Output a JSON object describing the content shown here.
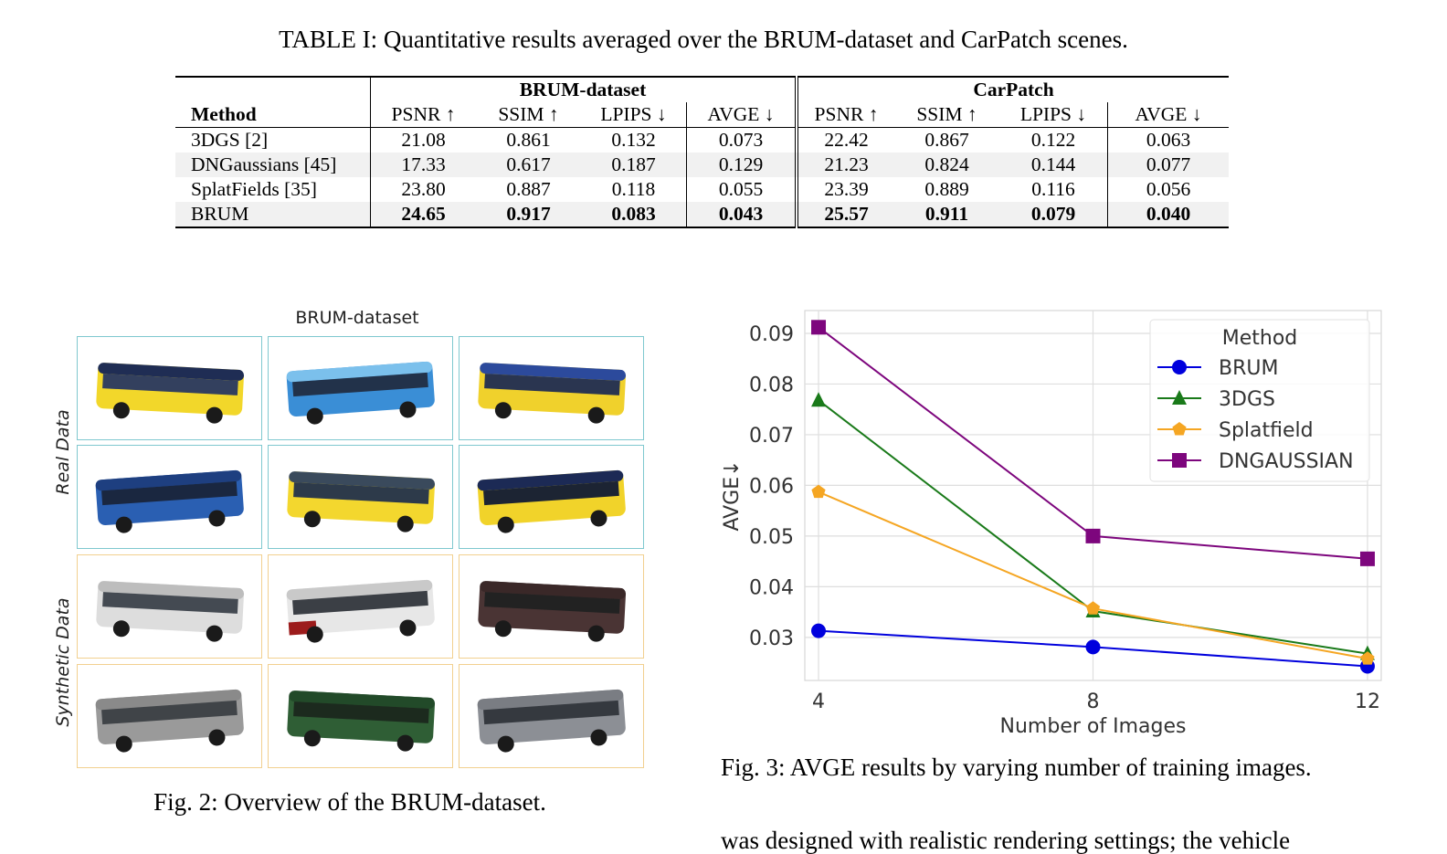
{
  "table": {
    "caption": "TABLE I: Quantitative results averaged over the BRUM-dataset and CarPatch scenes.",
    "group_headers": [
      "BRUM-dataset",
      "CarPatch"
    ],
    "method_header": "Method",
    "metric_headers": [
      "PSNR ↑",
      "SSIM ↑",
      "LPIPS ↓",
      "AVGE ↓",
      "PSNR ↑",
      "SSIM ↑",
      "LPIPS ↓",
      "AVGE ↓"
    ],
    "rows": [
      {
        "method": "3DGS [2]",
        "values": [
          "21.08",
          "0.861",
          "0.132",
          "0.073",
          "22.42",
          "0.867",
          "0.122",
          "0.063"
        ]
      },
      {
        "method": "DNGaussians [45]",
        "values": [
          "17.33",
          "0.617",
          "0.187",
          "0.129",
          "21.23",
          "0.824",
          "0.144",
          "0.077"
        ]
      },
      {
        "method": "SplatFields [35]",
        "values": [
          "23.80",
          "0.887",
          "0.118",
          "0.055",
          "23.39",
          "0.889",
          "0.116",
          "0.056"
        ]
      },
      {
        "method": "BRUM",
        "values": [
          "24.65",
          "0.917",
          "0.083",
          "0.043",
          "25.57",
          "0.911",
          "0.079",
          "0.040"
        ]
      }
    ]
  },
  "figure2": {
    "title": "BRUM-dataset",
    "row_labels": [
      "Real Data",
      "Synthetic Data"
    ],
    "caption": "Fig. 2: Overview of the BRUM-dataset.",
    "border_colors": {
      "real": "#7fc8cf",
      "synthetic": "#f2d08f"
    },
    "images": [
      {
        "name": "yellow-city-bus-front",
        "group": "real"
      },
      {
        "name": "blue-bus-side",
        "group": "real"
      },
      {
        "name": "yellow-blue-bus-side",
        "group": "real"
      },
      {
        "name": "blue-coach-side",
        "group": "real"
      },
      {
        "name": "yellow-bus-front",
        "group": "real"
      },
      {
        "name": "articulated-bus-side",
        "group": "real"
      },
      {
        "name": "white-coach",
        "group": "synthetic"
      },
      {
        "name": "red-white-bus",
        "group": "synthetic"
      },
      {
        "name": "dark-brown-coach",
        "group": "synthetic"
      },
      {
        "name": "grey-bus",
        "group": "synthetic"
      },
      {
        "name": "green-bus",
        "group": "synthetic"
      },
      {
        "name": "grey-coach-front",
        "group": "synthetic"
      }
    ]
  },
  "chart_data": {
    "type": "line",
    "title": "",
    "xlabel": "Number of Images",
    "ylabel": "AVGE↓",
    "x": [
      4,
      8,
      12
    ],
    "xlim": [
      3.8,
      12.2
    ],
    "ylim": [
      0.0215,
      0.0945
    ],
    "yticks": [
      "0.03",
      "0.04",
      "0.05",
      "0.06",
      "0.07",
      "0.08",
      "0.09"
    ],
    "xticks": [
      "4",
      "8",
      "12"
    ],
    "grid": true,
    "legend_title": "Method",
    "legend_position": "top-right",
    "series": [
      {
        "name": "BRUM",
        "values": [
          0.0313,
          0.0281,
          0.0243
        ],
        "color": "#0000dd",
        "marker": "circle"
      },
      {
        "name": "3DGS",
        "values": [
          0.0768,
          0.0352,
          0.0268
        ],
        "color": "#1a7a1a",
        "marker": "triangle"
      },
      {
        "name": "Splatfield",
        "values": [
          0.0587,
          0.0357,
          0.0258
        ],
        "color": "#f5a623",
        "marker": "pentagon"
      },
      {
        "name": "DNGAUSSIAN",
        "values": [
          0.0912,
          0.05,
          0.0455
        ],
        "color": "#7d067d",
        "marker": "square"
      }
    ]
  },
  "figure3": {
    "caption": "Fig. 3: AVGE results by varying number of training images."
  },
  "body_text": "was designed with realistic rendering settings; the vehicle"
}
